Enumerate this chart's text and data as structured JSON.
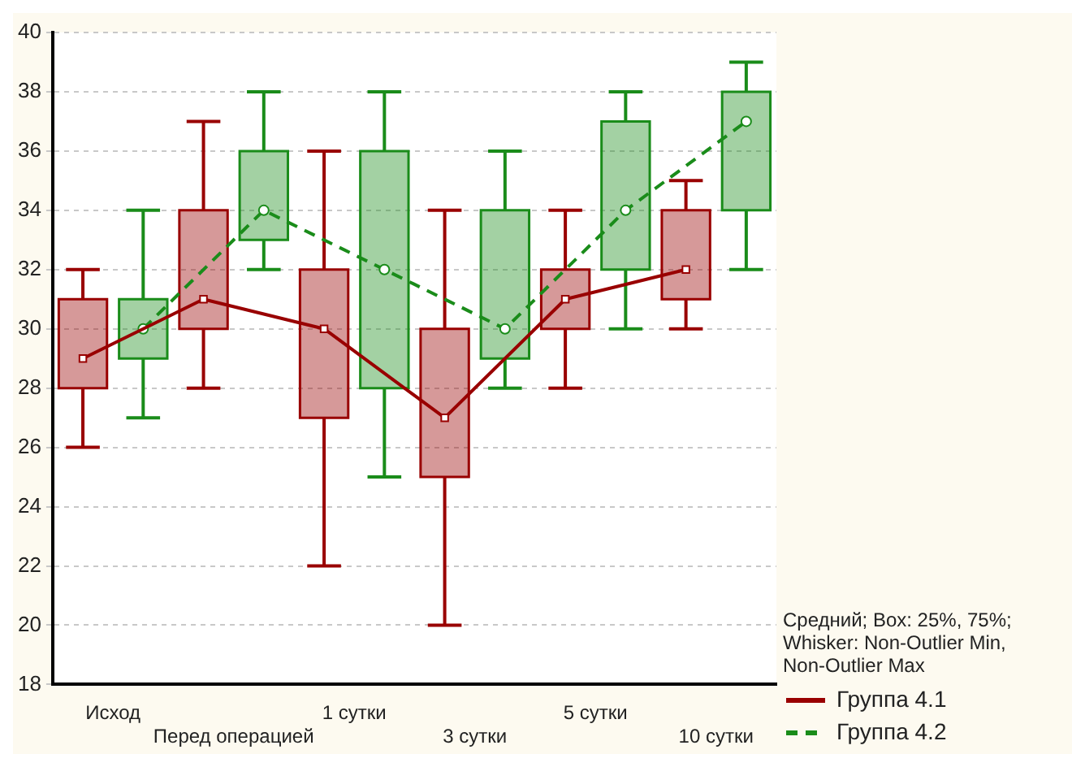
{
  "chart_data": {
    "type": "box",
    "categories": [
      "Исход",
      "Перед операцией",
      "1 сутки",
      "3 сутки",
      "5 сутки",
      "10 сутки"
    ],
    "series": [
      {
        "type": "box",
        "color": "#990000",
        "boxes": [
          {
            "low": 26,
            "q1": 28,
            "q3": 31,
            "high": 32
          },
          {
            "low": 28,
            "q1": 30,
            "q3": 34,
            "high": 37
          },
          {
            "low": 22,
            "q1": 27,
            "q3": 32,
            "high": 36
          },
          {
            "low": 20,
            "q1": 25,
            "q3": 30,
            "high": 34
          },
          {
            "low": 28,
            "q1": 30,
            "q3": 32,
            "high": 34
          },
          {
            "low": 30,
            "q1": 31,
            "q3": 34,
            "high": 35
          }
        ]
      },
      {
        "type": "box",
        "color": "#1a8c1a",
        "boxes": [
          {
            "low": 27,
            "q1": 29,
            "q3": 31,
            "high": 34
          },
          {
            "low": 32,
            "q1": 33,
            "q3": 36,
            "high": 38
          },
          {
            "low": 25,
            "q1": 28,
            "q3": 36,
            "high": 38
          },
          {
            "low": 28,
            "q1": 29,
            "q3": 34,
            "high": 36
          },
          {
            "low": 30,
            "q1": 32,
            "q3": 37,
            "high": 38
          },
          {
            "low": 32,
            "q1": 34,
            "q3": 38,
            "high": 39
          }
        ]
      },
      {
        "type": "line",
        "name": "Группа 4.1",
        "color": "#990000",
        "marker": "square",
        "line_style": "solid",
        "values": [
          29,
          31,
          30,
          27,
          31,
          32
        ]
      },
      {
        "type": "line",
        "name": "Группа 4.2",
        "color": "#1a8c1a",
        "marker": "circle",
        "line_style": "dashed",
        "values": [
          30,
          34,
          32,
          30,
          34,
          37
        ]
      }
    ],
    "ylim": [
      18,
      40
    ],
    "yticks": [
      18,
      20,
      22,
      24,
      26,
      28,
      30,
      32,
      34,
      36,
      38,
      40
    ],
    "grid": "y",
    "legend": "bottom right",
    "annotations": [
      "Средний; Box: 25%, 75%; Whisker: Non-Outlier Min, Non-Outlier Max"
    ]
  }
}
